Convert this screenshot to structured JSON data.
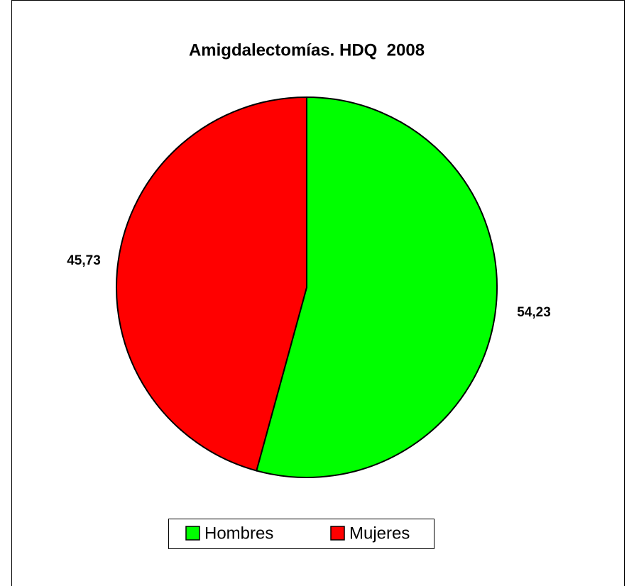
{
  "chart_data": {
    "type": "pie",
    "title": "Amigdalectomías. HDQ  2008",
    "categories": [
      "Hombres",
      "Mujeres"
    ],
    "values": [
      54.23,
      45.73
    ],
    "value_labels": [
      "54,23",
      "45,73"
    ],
    "colors": [
      "#00ff00",
      "#ff0000"
    ],
    "legend": "bottom"
  }
}
